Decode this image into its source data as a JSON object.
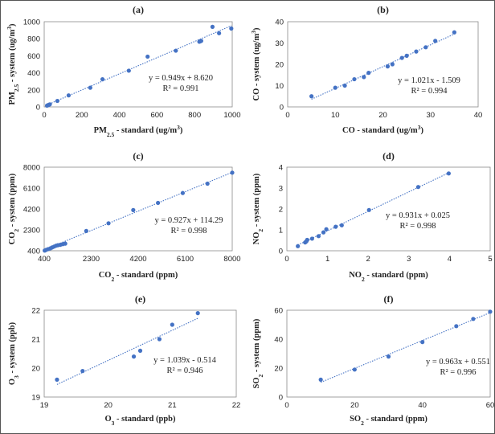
{
  "chart_data": [
    {
      "type": "scatter",
      "panel": "(a)",
      "title": "(a)",
      "xlabel": "PM2.5 - standard (ug/m3)",
      "ylabel": "PM2.5 - system (ug/m3)",
      "xlabel_parts": {
        "pre": "PM",
        "sub": "2.5",
        "post": " - standard (ug/m",
        "sup": "3",
        "end": ")"
      },
      "ylabel_parts": {
        "pre": "PM",
        "sub": "2.5",
        "post": " - system (ug/m",
        "sup": "3",
        "end": ")"
      },
      "xlim": [
        0,
        1000
      ],
      "ylim": [
        0,
        1000
      ],
      "xticks": [
        0,
        200,
        400,
        600,
        800,
        1000
      ],
      "yticks": [
        0,
        200,
        400,
        600,
        800,
        1000
      ],
      "x": [
        15,
        20,
        25,
        30,
        70,
        130,
        245,
        310,
        450,
        550,
        700,
        825,
        830,
        835,
        895,
        930,
        995
      ],
      "y": [
        15,
        20,
        25,
        30,
        70,
        135,
        225,
        325,
        425,
        590,
        660,
        765,
        770,
        775,
        940,
        865,
        920
      ],
      "trendline": {
        "slope": 0.949,
        "intercept": 8.62,
        "x_range": [
          15,
          995
        ]
      },
      "equation": "y = 0.949x + 8.620",
      "r2": "R² = 0.991",
      "grid": false
    },
    {
      "type": "scatter",
      "panel": "(b)",
      "title": "(b)",
      "xlabel": "CO - standard (ug/m3)",
      "ylabel": "CO - system (ug/m3)",
      "xlabel_parts": {
        "pre": "CO",
        "sub": "",
        "post": " - standard (ug/m",
        "sup": "3",
        "end": ")"
      },
      "ylabel_parts": {
        "pre": "CO",
        "sub": "",
        "post": " - system (ug/m",
        "sup": "3",
        "end": ")"
      },
      "xlim": [
        0,
        40
      ],
      "ylim": [
        0,
        40
      ],
      "xticks": [
        0,
        10,
        20,
        30,
        40
      ],
      "yticks": [
        0,
        10,
        20,
        30,
        40
      ],
      "x": [
        5,
        10,
        12,
        14,
        16,
        17,
        21,
        22,
        24,
        25,
        27,
        29,
        31,
        35
      ],
      "y": [
        5,
        9,
        10,
        13,
        14,
        16,
        19,
        20,
        23,
        24,
        26,
        28,
        31,
        35
      ],
      "trendline": {
        "slope": 1.021,
        "intercept": -1.509,
        "x_range": [
          5,
          35
        ]
      },
      "equation": "y = 1.021x - 1.509",
      "r2": "R² = 0.994",
      "grid": false
    },
    {
      "type": "scatter",
      "panel": "(c)",
      "title": "(c)",
      "xlabel": "CO2 - standard (ppm)",
      "ylabel": "CO2 - system (ppm)",
      "xlabel_parts": {
        "pre": "CO",
        "sub": "2",
        "post": " - standard (ppm)",
        "sup": "",
        "end": ""
      },
      "ylabel_parts": {
        "pre": "CO",
        "sub": "2",
        "post": " - system (ppm)",
        "sup": "",
        "end": ""
      },
      "xlim": [
        400,
        8000
      ],
      "ylim": [
        400,
        8000
      ],
      "xticks": [
        400,
        2300,
        4200,
        6100,
        8000
      ],
      "yticks": [
        400,
        2300,
        4200,
        6100,
        8000
      ],
      "x": [
        420,
        480,
        560,
        650,
        720,
        800,
        880,
        950,
        1050,
        1150,
        1250,
        2100,
        3000,
        4000,
        5000,
        6000,
        7000,
        8000
      ],
      "y": [
        420,
        480,
        550,
        620,
        700,
        780,
        860,
        900,
        940,
        1000,
        1050,
        2200,
        2900,
        4100,
        4750,
        5650,
        6500,
        7500
      ],
      "trendline": {
        "slope": 0.927,
        "intercept": 114.29,
        "x_range": [
          420,
          8000
        ]
      },
      "equation": "y = 0.927x + 114.29",
      "r2": "R² = 0.998",
      "grid": false
    },
    {
      "type": "scatter",
      "panel": "(d)",
      "title": "(d)",
      "xlabel": "NO2 - standard (ppm)",
      "ylabel": "NO2 - system (ppm)",
      "xlabel_parts": {
        "pre": "NO",
        "sub": "2",
        "post": " - standard (ppm)",
        "sup": "",
        "end": ""
      },
      "ylabel_parts": {
        "pre": "NO",
        "sub": "2",
        "post": " - system (ppm)",
        "sup": "",
        "end": ""
      },
      "xlim": [
        0,
        5
      ],
      "ylim": [
        0,
        4
      ],
      "xticks": [
        0,
        1,
        2,
        3,
        4,
        5
      ],
      "yticks": [
        0,
        1,
        2,
        3,
        4
      ],
      "x": [
        0.27,
        0.45,
        0.48,
        0.5,
        0.62,
        0.78,
        0.9,
        0.97,
        1.2,
        1.35,
        2.02,
        3.23,
        3.98
      ],
      "y": [
        0.22,
        0.4,
        0.45,
        0.52,
        0.58,
        0.7,
        0.88,
        1.03,
        1.15,
        1.22,
        1.95,
        3.05,
        3.7
      ],
      "trendline": {
        "slope": 0.931,
        "intercept": 0.025,
        "x_range": [
          0.27,
          3.98
        ]
      },
      "equation": "y = 0.931x + 0.025",
      "r2": "R² = 0.998",
      "grid": false
    },
    {
      "type": "scatter",
      "panel": "(e)",
      "title": "(e)",
      "xlabel": "O3 - standard (ppb)",
      "ylabel": "O3 - system (ppb)",
      "xlabel_parts": {
        "pre": "O",
        "sub": "3",
        "post": " - standard (ppb)",
        "sup": "",
        "end": ""
      },
      "ylabel_parts": {
        "pre": "O",
        "sub": "3",
        "post": " - system (ppb)",
        "sup": "",
        "end": ""
      },
      "xlim": [
        19,
        22
      ],
      "ylim": [
        19,
        22
      ],
      "xticks": [
        19,
        20,
        21,
        22
      ],
      "yticks": [
        19,
        20,
        21,
        22
      ],
      "x": [
        19.2,
        19.6,
        20.4,
        20.5,
        20.8,
        21.0,
        21.4
      ],
      "y": [
        19.6,
        19.9,
        20.4,
        20.6,
        21.0,
        21.5,
        21.9
      ],
      "trendline": {
        "slope": 1.039,
        "intercept": -0.514,
        "x_range": [
          19.2,
          21.4
        ]
      },
      "equation": "y = 1.039x - 0.514",
      "r2": "R² = 0.946",
      "grid": false
    },
    {
      "type": "scatter",
      "panel": "(f)",
      "title": "(f)",
      "xlabel": "SO2 - standard (ppm)",
      "ylabel": "SO2 - system (ppm)",
      "xlabel_parts": {
        "pre": "SO",
        "sub": "2",
        "post": " - standard (ppm)",
        "sup": "",
        "end": ""
      },
      "ylabel_parts": {
        "pre": "SO",
        "sub": "2",
        "post": " - system (ppm)",
        "sup": "",
        "end": ""
      },
      "xlim": [
        0,
        60
      ],
      "ylim": [
        0,
        60
      ],
      "xticks": [
        0,
        20,
        40,
        60
      ],
      "yticks": [
        0,
        20,
        40,
        60
      ],
      "x": [
        10,
        20,
        30,
        40,
        50,
        55,
        60
      ],
      "y": [
        12,
        19,
        28,
        38,
        49,
        54,
        59
      ],
      "trendline": {
        "slope": 0.963,
        "intercept": 0.551,
        "x_range": [
          10,
          60
        ]
      },
      "equation": "y = 0.963x + 0.551",
      "r2": "R² = 0.996",
      "grid": false
    }
  ]
}
